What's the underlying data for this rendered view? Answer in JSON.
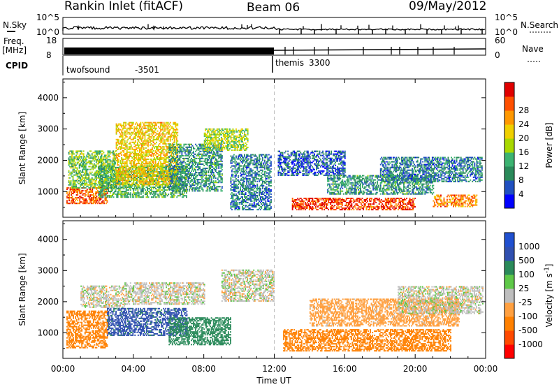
{
  "header": {
    "station": "Rankin Inlet (fitACF)",
    "beam": "Beam 06",
    "date": "09/May/2012"
  },
  "status_panel": {
    "left_labels": {
      "nsky": "N.Sky",
      "freq": "Freq.",
      "freq_unit": "[MHz]",
      "cpid": "CPID"
    },
    "right_labels": {
      "nsearch": "N.Search",
      "nave": "Nave"
    },
    "nsky_ticks": [
      "10^5",
      "10^0"
    ],
    "nsearch_ticks": [
      "10^5",
      "10^0"
    ],
    "freq_ticks": [
      "18",
      "8"
    ],
    "nave_ticks": [
      "60",
      "0"
    ],
    "cpid_segments": [
      {
        "name": "twofsound",
        "id": "-3501",
        "start_hour": 0,
        "end_hour": 12
      },
      {
        "name": "themis",
        "id": "3300",
        "start_hour": 12,
        "end_hour": 24
      }
    ]
  },
  "chart_data": [
    {
      "type": "heatmap",
      "name": "power",
      "xlabel": "Time UT",
      "ylabel": "Slant Range [km]",
      "xlim": [
        0,
        24
      ],
      "ylim": [
        180,
        4600
      ],
      "x_ticks": [
        "00:00",
        "04:00",
        "08:00",
        "12:00",
        "16:00",
        "20:00",
        "00:00"
      ],
      "y_ticks": [
        1000,
        2000,
        3000,
        4000
      ],
      "colorbar": {
        "label": "Power [dB]",
        "tick_labels": [
          "4",
          "8",
          "12",
          "16",
          "20",
          "24",
          "28"
        ],
        "colors": [
          "#0000ff",
          "#2050c0",
          "#2a8a5a",
          "#3cb371",
          "#a8d800",
          "#f0d000",
          "#ff9800",
          "#ff5000",
          "#e00000"
        ],
        "range": [
          0,
          32
        ]
      },
      "echo_regions": [
        {
          "t_start": 0.2,
          "t_end": 2.5,
          "r_start": 600,
          "r_end": 1100,
          "value": 26
        },
        {
          "t_start": 0.3,
          "t_end": 3.0,
          "r_start": 1100,
          "r_end": 2300,
          "value": 14
        },
        {
          "t_start": 2.0,
          "t_end": 7.0,
          "r_start": 800,
          "r_end": 1800,
          "value": 12
        },
        {
          "t_start": 3.0,
          "t_end": 6.5,
          "r_start": 1200,
          "r_end": 3200,
          "value": 20
        },
        {
          "t_start": 6.0,
          "t_end": 9.0,
          "r_start": 1000,
          "r_end": 2500,
          "value": 10
        },
        {
          "t_start": 8.0,
          "t_end": 10.5,
          "r_start": 2300,
          "r_end": 3000,
          "value": 16
        },
        {
          "t_start": 9.5,
          "t_end": 11.8,
          "r_start": 400,
          "r_end": 2200,
          "value": 8
        },
        {
          "t_start": 12.2,
          "t_end": 16.0,
          "r_start": 1500,
          "r_end": 2300,
          "value": 6
        },
        {
          "t_start": 13.0,
          "t_end": 20.0,
          "r_start": 400,
          "r_end": 800,
          "value": 28
        },
        {
          "t_start": 15.0,
          "t_end": 21.0,
          "r_start": 900,
          "r_end": 1500,
          "value": 10
        },
        {
          "t_start": 18.0,
          "t_end": 23.8,
          "r_start": 1300,
          "r_end": 2100,
          "value": 8
        },
        {
          "t_start": 21.0,
          "t_end": 23.5,
          "r_start": 500,
          "r_end": 900,
          "value": 24
        }
      ]
    },
    {
      "type": "heatmap",
      "name": "velocity",
      "xlabel": "Time UT",
      "ylabel": "Slant Range [km]",
      "xlim": [
        0,
        24
      ],
      "ylim": [
        180,
        4600
      ],
      "x_ticks": [
        "00:00",
        "04:00",
        "08:00",
        "12:00",
        "16:00",
        "20:00",
        "00:00"
      ],
      "y_ticks": [
        1000,
        2000,
        3000,
        4000
      ],
      "colorbar": {
        "label": "Velocity [m s",
        "label_sup": "-1",
        "tick_labels": [
          "1000",
          "500",
          "100",
          "25",
          "-25",
          "-100",
          "-500",
          "-1000"
        ],
        "colors": [
          "#ff0000",
          "#ff4a00",
          "#ff8000",
          "#ffa040",
          "#bebebe",
          "#5ec848",
          "#2a8a5a",
          "#3050b0",
          "#2050d0"
        ]
      },
      "echo_regions": [
        {
          "t_start": 0.2,
          "t_end": 2.5,
          "r_start": 500,
          "r_end": 1700,
          "value": -200
        },
        {
          "t_start": 1.0,
          "t_end": 3.5,
          "r_start": 1800,
          "r_end": 2500,
          "value": 0
        },
        {
          "t_start": 2.5,
          "t_end": 7.0,
          "r_start": 900,
          "r_end": 1800,
          "value": 700
        },
        {
          "t_start": 3.5,
          "t_end": 8.0,
          "r_start": 1900,
          "r_end": 2600,
          "value": 0
        },
        {
          "t_start": 6.0,
          "t_end": 9.5,
          "r_start": 600,
          "r_end": 1500,
          "value": 300
        },
        {
          "t_start": 9.0,
          "t_end": 12.0,
          "r_start": 2000,
          "r_end": 3000,
          "value": 0
        },
        {
          "t_start": 12.5,
          "t_end": 22.0,
          "r_start": 400,
          "r_end": 1100,
          "value": -200
        },
        {
          "t_start": 14.0,
          "t_end": 22.5,
          "r_start": 1200,
          "r_end": 2100,
          "value": -60
        },
        {
          "t_start": 19.0,
          "t_end": 23.8,
          "r_start": 1600,
          "r_end": 2500,
          "value": 0
        }
      ]
    }
  ]
}
